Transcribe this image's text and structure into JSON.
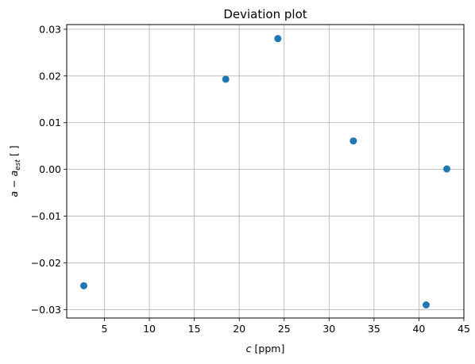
{
  "chart_data": {
    "type": "scatter",
    "title": "Deviation plot",
    "xlabel": {
      "var": "c",
      "unit": " [ppm]"
    },
    "ylabel": {
      "base": "a − a",
      "sub": "est",
      "unit": " [ ]"
    },
    "xlim": [
      0.8,
      45
    ],
    "ylim": [
      -0.0318,
      0.031
    ],
    "xticks": [
      5,
      10,
      15,
      20,
      25,
      30,
      35,
      40,
      45
    ],
    "xtick_labels": [
      "5",
      "10",
      "15",
      "20",
      "25",
      "30",
      "35",
      "40",
      "45"
    ],
    "yticks": [
      -0.03,
      -0.02,
      -0.01,
      0,
      0.01,
      0.02,
      0.03
    ],
    "ytick_labels": [
      "−0.03",
      "−0.02",
      "−0.01",
      "0.00",
      "0.01",
      "0.02",
      "0.03"
    ],
    "grid": true,
    "marker_color": "#1f77b4",
    "points": [
      {
        "x": 2.7,
        "y": -0.0249
      },
      {
        "x": 18.5,
        "y": 0.0193
      },
      {
        "x": 24.3,
        "y": 0.028
      },
      {
        "x": 32.7,
        "y": 0.0061
      },
      {
        "x": 40.8,
        "y": -0.029
      },
      {
        "x": 43.1,
        "y": 0.0001
      }
    ]
  }
}
